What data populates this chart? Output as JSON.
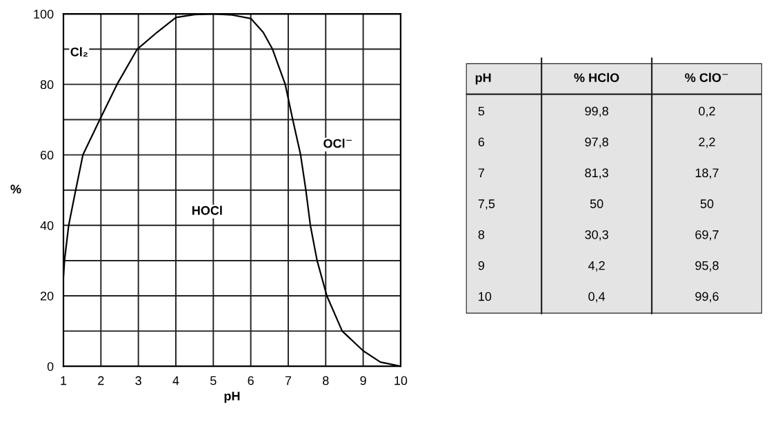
{
  "chart_data": [
    {
      "type": "line",
      "xlabel": "pH",
      "ylabel": "%",
      "x": [
        1,
        1.03,
        1.14,
        1.31,
        1.52,
        1.97,
        2.43,
        2.97,
        3.5,
        4,
        4.5,
        5,
        5.5,
        6,
        6.33,
        6.58,
        6.92,
        7.12,
        7.33,
        7.47,
        7.59,
        7.77,
        8.03,
        8.44,
        9,
        9.46,
        10
      ],
      "series": [
        {
          "color": "#000000",
          "values": [
            25.3,
            30.2,
            40,
            49.1,
            60,
            70,
            80,
            90,
            94.8,
            99,
            99.8,
            100,
            99.7,
            98.7,
            94.8,
            90,
            80,
            70,
            60,
            50,
            40,
            30,
            20,
            10,
            4.4,
            1.2,
            0
          ]
        }
      ],
      "xlim": [
        1,
        10
      ],
      "xticks": [
        1,
        2,
        3,
        4,
        5,
        6,
        7,
        8,
        9,
        10
      ],
      "ylim": [
        0,
        100
      ],
      "yticks": [
        {
          "value": 0,
          "label": "0"
        },
        {
          "value": 10,
          "label": null
        },
        {
          "value": 20,
          "label": "20"
        },
        {
          "value": 30,
          "label": null
        },
        {
          "value": 40,
          "label": "40"
        },
        {
          "value": 50,
          "label": null
        },
        {
          "value": 60,
          "label": "60"
        },
        {
          "value": 70,
          "label": null
        },
        {
          "value": 80,
          "label": "80"
        },
        {
          "value": 90,
          "label": null
        },
        {
          "value": 100,
          "label": "100"
        }
      ],
      "grid": true,
      "marker": "none",
      "line_style": "solid",
      "annotations": [
        "Cl₂",
        "HOCl",
        "OCl$^{−}$"
      ]
    },
    {
      "type": "other",
      "xlabel": "pH",
      "categories": [
        "5",
        "6",
        "7",
        "7,5",
        "8",
        "9",
        "10"
      ],
      "series": [
        {
          "name": "% HClO",
          "values": [
            99.8,
            97.8,
            81.3,
            50,
            30.3,
            4.2,
            0.4
          ],
          "value_labels": [
            "99,8",
            "97,8",
            "81,3",
            "50",
            "30,3",
            "4,2",
            "0,4"
          ]
        },
        {
          "name": "% ClO$^{−}$",
          "values": [
            0.2,
            2.2,
            18.7,
            50,
            69.7,
            95.8,
            99.6
          ],
          "value_labels": [
            "0,2",
            "2,2",
            "18,7",
            "50",
            "69,7",
            "95,8",
            "99,6"
          ]
        }
      ]
    }
  ]
}
